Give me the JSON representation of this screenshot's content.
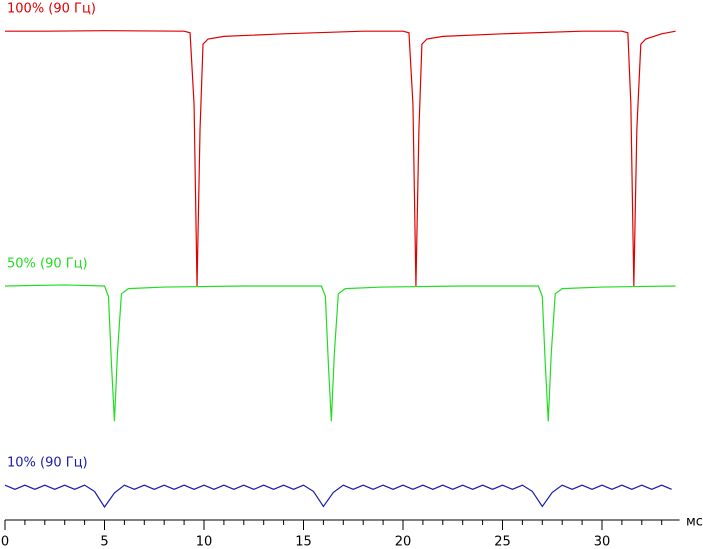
{
  "chart_data": {
    "type": "line",
    "x_label": "мс",
    "xlim": [
      0,
      33.9
    ],
    "xticks": [
      0,
      5,
      10,
      15,
      20,
      25,
      30
    ],
    "xminorticks": [
      1,
      2,
      3,
      4,
      6,
      7,
      8,
      9,
      11,
      12,
      13,
      14,
      16,
      17,
      18,
      19,
      21,
      22,
      23,
      24,
      26,
      27,
      28,
      29,
      31,
      32,
      33
    ],
    "ylim": [
      0,
      100
    ],
    "series": [
      {
        "name": "100% (90 Гц)",
        "color": "#e00000",
        "x": [
          0,
          2,
          5,
          9.0,
          9.3,
          9.5,
          9.65,
          9.8,
          9.95,
          10.2,
          11,
          14,
          18,
          20.0,
          20.3,
          20.5,
          20.65,
          20.8,
          20.95,
          21.2,
          22,
          25,
          29,
          31.0,
          31.3,
          31.45,
          31.6,
          31.75,
          31.95,
          32.2,
          33,
          33.7
        ],
        "values": [
          94,
          94,
          94.1,
          94,
          93.7,
          80,
          45,
          75,
          91.5,
          92.5,
          93,
          93.5,
          94,
          94,
          93.7,
          80,
          45,
          75,
          91.5,
          92.5,
          93,
          93.5,
          94,
          94,
          93.7,
          80,
          45,
          75,
          91.5,
          92.5,
          93.5,
          94
        ]
      },
      {
        "name": "50% (90 Гц)",
        "color": "#22dd22",
        "x": [
          0,
          3,
          5.0,
          5.2,
          5.35,
          5.5,
          5.65,
          5.85,
          6.2,
          8,
          12,
          15.9,
          16.1,
          16.25,
          16.4,
          16.55,
          16.75,
          17.1,
          19,
          23,
          26.8,
          27.0,
          27.15,
          27.3,
          27.45,
          27.65,
          28.0,
          30,
          33.7
        ],
        "values": [
          45,
          45.2,
          45,
          43,
          30,
          19,
          32,
          43.5,
          44.5,
          44.8,
          45,
          45,
          43,
          30,
          19,
          32,
          43.5,
          44.5,
          44.8,
          45,
          45,
          43,
          30,
          19,
          32,
          43.5,
          44.5,
          44.8,
          45
        ]
      },
      {
        "name": "10% (90 Гц)",
        "color": "#1a1ab0",
        "x": [
          0,
          0.5,
          1,
          1.5,
          2,
          2.5,
          3,
          3.5,
          4,
          4.5,
          5,
          5.5,
          6,
          6.5,
          7,
          7.5,
          8,
          8.5,
          9,
          9.5,
          10,
          10.5,
          11,
          11.5,
          12,
          12.5,
          13,
          13.5,
          14,
          14.5,
          15,
          15.5,
          16,
          16.5,
          17,
          17.5,
          18,
          18.5,
          19,
          19.5,
          20,
          20.5,
          21,
          21.5,
          22,
          22.5,
          23,
          23.5,
          24,
          24.5,
          25,
          25.5,
          26,
          26.5,
          27,
          27.5,
          28,
          28.5,
          29,
          29.5,
          30,
          30.5,
          31,
          31.5,
          32,
          32.5,
          33,
          33.5
        ],
        "values": [
          6.7,
          5.9,
          6.7,
          5.9,
          6.7,
          5.9,
          6.7,
          5.9,
          6.7,
          5.5,
          2.5,
          5.2,
          6.7,
          5.9,
          6.7,
          5.9,
          6.7,
          5.9,
          6.7,
          5.9,
          6.7,
          5.9,
          6.7,
          5.9,
          6.7,
          5.9,
          6.7,
          5.9,
          6.7,
          5.9,
          6.7,
          5.5,
          2.6,
          5.3,
          6.7,
          5.9,
          6.7,
          5.9,
          6.7,
          5.9,
          6.7,
          5.9,
          6.7,
          5.9,
          6.7,
          5.9,
          6.7,
          5.9,
          6.7,
          5.9,
          6.7,
          5.9,
          6.7,
          5.5,
          2.6,
          5.3,
          6.7,
          5.9,
          6.7,
          5.9,
          6.7,
          5.9,
          6.7,
          5.9,
          6.7,
          5.9,
          6.7,
          5.9
        ]
      }
    ]
  }
}
